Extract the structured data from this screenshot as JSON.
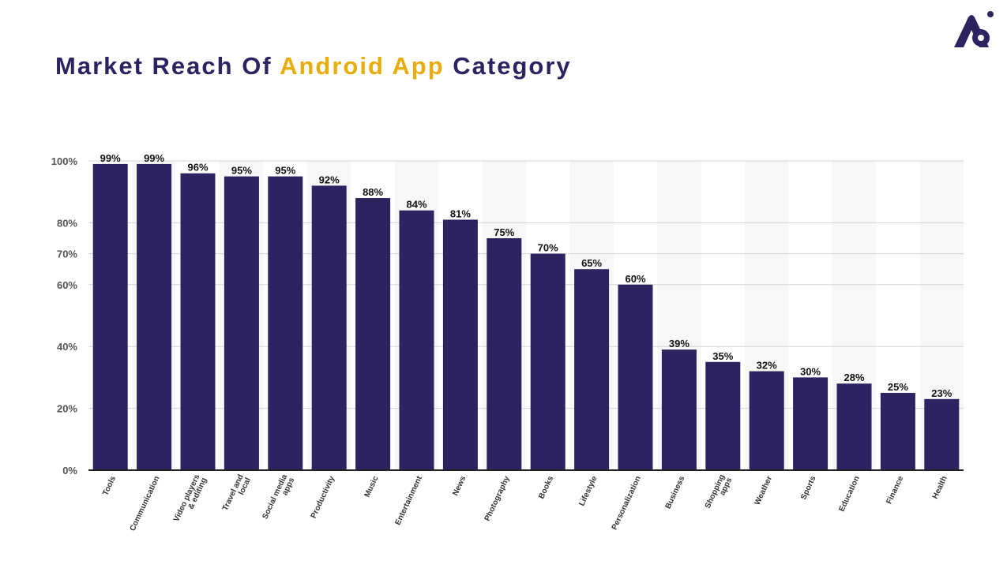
{
  "header": {
    "title_part1": "Market Reach Of ",
    "title_highlight": "Android App",
    "title_part2": " Category",
    "logo_icon": "brand-logo-icon"
  },
  "colors": {
    "bar": "#2b2460",
    "title": "#2b2460",
    "highlight": "#e8ac0c"
  },
  "chart_data": {
    "type": "bar",
    "title": "Market Reach Of Android App Category",
    "xlabel": "",
    "ylabel": "",
    "categories": [
      "Tools",
      "Communication",
      "Video players & editing",
      "Travel and local",
      "Social media apps",
      "Productivity",
      "Music",
      "Entertainment",
      "News",
      "Photography",
      "Books",
      "Lifestyle",
      "Personalization",
      "Business",
      "Shopping apps",
      "Weather",
      "Sports",
      "Education",
      "Finance",
      "Health"
    ],
    "category_lines": [
      [
        "Tools"
      ],
      [
        "Communication"
      ],
      [
        "Video players",
        "& editing"
      ],
      [
        "Travel and",
        "local"
      ],
      [
        "Social media",
        "apps"
      ],
      [
        "Productivity"
      ],
      [
        "Music"
      ],
      [
        "Entertainment"
      ],
      [
        "News"
      ],
      [
        "Photography"
      ],
      [
        "Books"
      ],
      [
        "Lifestyle"
      ],
      [
        "Personalization"
      ],
      [
        "Business"
      ],
      [
        "Shopping",
        "apps"
      ],
      [
        "Weather"
      ],
      [
        "Sports"
      ],
      [
        "Education"
      ],
      [
        "Finance"
      ],
      [
        "Health"
      ]
    ],
    "values": [
      99,
      99,
      96,
      95,
      95,
      92,
      88,
      84,
      81,
      75,
      70,
      65,
      60,
      39,
      35,
      32,
      30,
      28,
      25,
      23
    ],
    "value_labels": [
      "99%",
      "99%",
      "96%",
      "95%",
      "95%",
      "92%",
      "88%",
      "84%",
      "81%",
      "75%",
      "70%",
      "65%",
      "60%",
      "39%",
      "35%",
      "32%",
      "30%",
      "28%",
      "25%",
      "23%"
    ],
    "y_ticks": [
      {
        "value": 0,
        "label": "0%"
      },
      {
        "value": 20,
        "label": "20%"
      },
      {
        "value": 40,
        "label": "40%"
      },
      {
        "value": 60,
        "label": "60%"
      },
      {
        "value": 70,
        "label": "70%"
      },
      {
        "value": 80,
        "label": "80%"
      },
      {
        "value": 100,
        "label": "100%"
      }
    ],
    "grid": true,
    "legend": "none"
  }
}
